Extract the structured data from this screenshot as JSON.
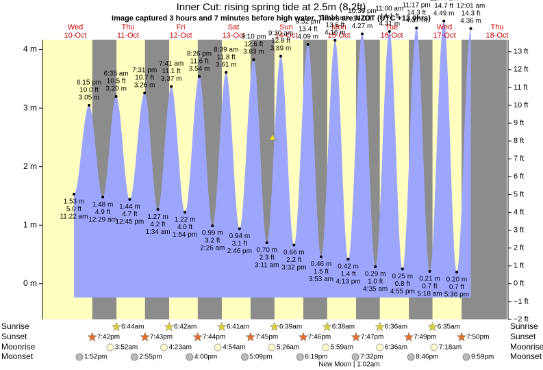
{
  "chart_data": {
    "type": "tide",
    "title": "Inner Cut: rising  spring tide at 2.5m (8.2ft)",
    "subtitle": "Image captured 3 hours and 7 minutes before high water. Times are NZDT (UTC +13.0hrs)",
    "days": [
      "Wed",
      "Thu",
      "Fri",
      "Sat",
      "Sun",
      "Mon",
      "Tue",
      "Wed",
      "Thu"
    ],
    "dates": [
      "10-Oct",
      "11-Oct",
      "12-Oct",
      "13-Oct",
      "14-Oct",
      "15-Oct",
      "16-Oct",
      "17-Oct",
      "18-Oct"
    ],
    "x": [
      "11:22 am",
      "6:15 pm",
      "12:29 am",
      "6:35 am",
      "12:45 pm",
      "7:31 pm",
      "1:34 am",
      "7:41 am",
      "1:54 pm",
      "8:26 pm",
      "2:26 am",
      "8:39 am",
      "2:46 pm",
      "9:10 pm",
      "3:11 am",
      "9:30 am",
      "3:32 pm",
      "9:52 pm",
      "3:53 am",
      "10:14 am",
      "4:13 pm",
      "10:36 pm",
      "4:35 am",
      "11:00 am",
      "4:55 pm",
      "11:17 pm",
      "5:18 am",
      "11:44 am",
      "5:36 pm",
      "12:01 am"
    ],
    "values": [
      1.53,
      3.05,
      1.48,
      3.2,
      1.44,
      3.26,
      1.27,
      3.37,
      1.22,
      3.54,
      0.99,
      3.61,
      0.94,
      3.83,
      0.7,
      3.89,
      0.66,
      4.09,
      0.46,
      4.16,
      0.42,
      4.27,
      0.29,
      4.31,
      0.25,
      4.37,
      0.21,
      4.49,
      0.2,
      4.36
    ],
    "value_labels": [
      "1.53 m",
      "3.05 m",
      "1.48 m",
      "3.20 m",
      "1.44 m",
      "3.26 m",
      "1.27 m",
      "3.37 m",
      "1.22 m",
      "3.54 m",
      "0.99 m",
      "3.61 m",
      "0.94 m",
      "3.83 m",
      "0.70 m",
      "3.89 m",
      "0.66 m",
      "4.09 m",
      "0.46 m",
      "4.16 m",
      "0.42 m",
      "4.27 m",
      "0.29 m",
      "4.31 m",
      "0.25 m",
      "4.37 m",
      "0.21 m",
      "4.49 m",
      "0.20 m",
      "4.36 m"
    ],
    "values_ft": [
      5.0,
      10.0,
      4.9,
      10.5,
      4.7,
      10.7,
      4.2,
      11.1,
      4.0,
      11.6,
      3.2,
      11.8,
      3.1,
      12.6,
      2.3,
      12.8,
      2.2,
      13.4,
      1.5,
      13.6,
      1.4,
      14.0,
      1.0,
      14.1,
      0.8,
      14.3,
      0.7,
      14.7,
      0.7,
      14.3
    ],
    "value_labels_ft": [
      "5.0 ft",
      "10.0 ft",
      "4.9 ft",
      "10.5 ft",
      "4.7 ft",
      "10.7 ft",
      "4.2 ft",
      "11.1 ft",
      "4.0 ft",
      "11.6 ft",
      "3.2 ft",
      "11.8 ft",
      "3.1 ft",
      "12.6 ft",
      "2.3 ft",
      "12.8 ft",
      "2.2 ft",
      "13.4 ft",
      "1.5 ft",
      "13.6 ft",
      "1.4 ft",
      "14.0 ft",
      "1.0 ft",
      "14.1 ft",
      "0.8 ft",
      "14.3 ft",
      "0.7 ft",
      "14.7 ft",
      "0.7 ft",
      "14.3 ft"
    ],
    "current_height": 2.5,
    "ylim": [
      -0.61,
      4.17
    ],
    "yticks": [
      {
        "value": 0,
        "label": "0 m"
      },
      {
        "value": 1,
        "label": "1 m"
      },
      {
        "value": 2,
        "label": "2 m"
      },
      {
        "value": 3,
        "label": "3 m"
      },
      {
        "value": 4,
        "label": "4 m"
      }
    ],
    "y2lim": [
      -2,
      13.68
    ],
    "y2ticks": [
      {
        "value": -2,
        "label": "−2 ft"
      },
      {
        "value": -1,
        "label": "−1 ft"
      },
      {
        "value": 0,
        "label": "0 ft"
      },
      {
        "value": 1,
        "label": "1 ft"
      },
      {
        "value": 2,
        "label": "2 ft"
      },
      {
        "value": 3,
        "label": "3 ft"
      },
      {
        "value": 4,
        "label": "4 ft"
      },
      {
        "value": 5,
        "label": "5 ft"
      },
      {
        "value": 6,
        "label": "6 ft"
      },
      {
        "value": 7,
        "label": "7 ft"
      },
      {
        "value": 8,
        "label": "8 ft"
      },
      {
        "value": 9,
        "label": "9 ft"
      },
      {
        "value": 10,
        "label": "10 ft"
      },
      {
        "value": 11,
        "label": "11 ft"
      },
      {
        "value": 12,
        "label": "12 ft"
      },
      {
        "value": 13,
        "label": "13 ft"
      }
    ],
    "rows": [
      {
        "name": "Sunrise",
        "times": [
          null,
          "6:44am",
          "6:42am",
          "6:41am",
          "6:39am",
          "6:38am",
          "6:36am",
          "6:35am",
          null
        ]
      },
      {
        "name": "Sunset",
        "times": [
          "7:42pm",
          "7:43pm",
          "7:44pm",
          "7:45pm",
          "7:46pm",
          "7:47pm",
          "7:49pm",
          "7:50pm",
          null
        ]
      },
      {
        "name": "Moonrise",
        "times": [
          null,
          "3:52am",
          "4:23am",
          "4:54am",
          "5:26am",
          "5:59am",
          "6:36am",
          "7:18am",
          null
        ]
      },
      {
        "name": "Moonset",
        "times": [
          "1:52pm",
          "2:55pm",
          "4:00pm",
          "5:09pm",
          "6:19pm",
          "7:32pm",
          "8:46pm",
          "9:59pm",
          null
        ]
      }
    ],
    "moon_phase": "New Moon | 1:02am"
  }
}
